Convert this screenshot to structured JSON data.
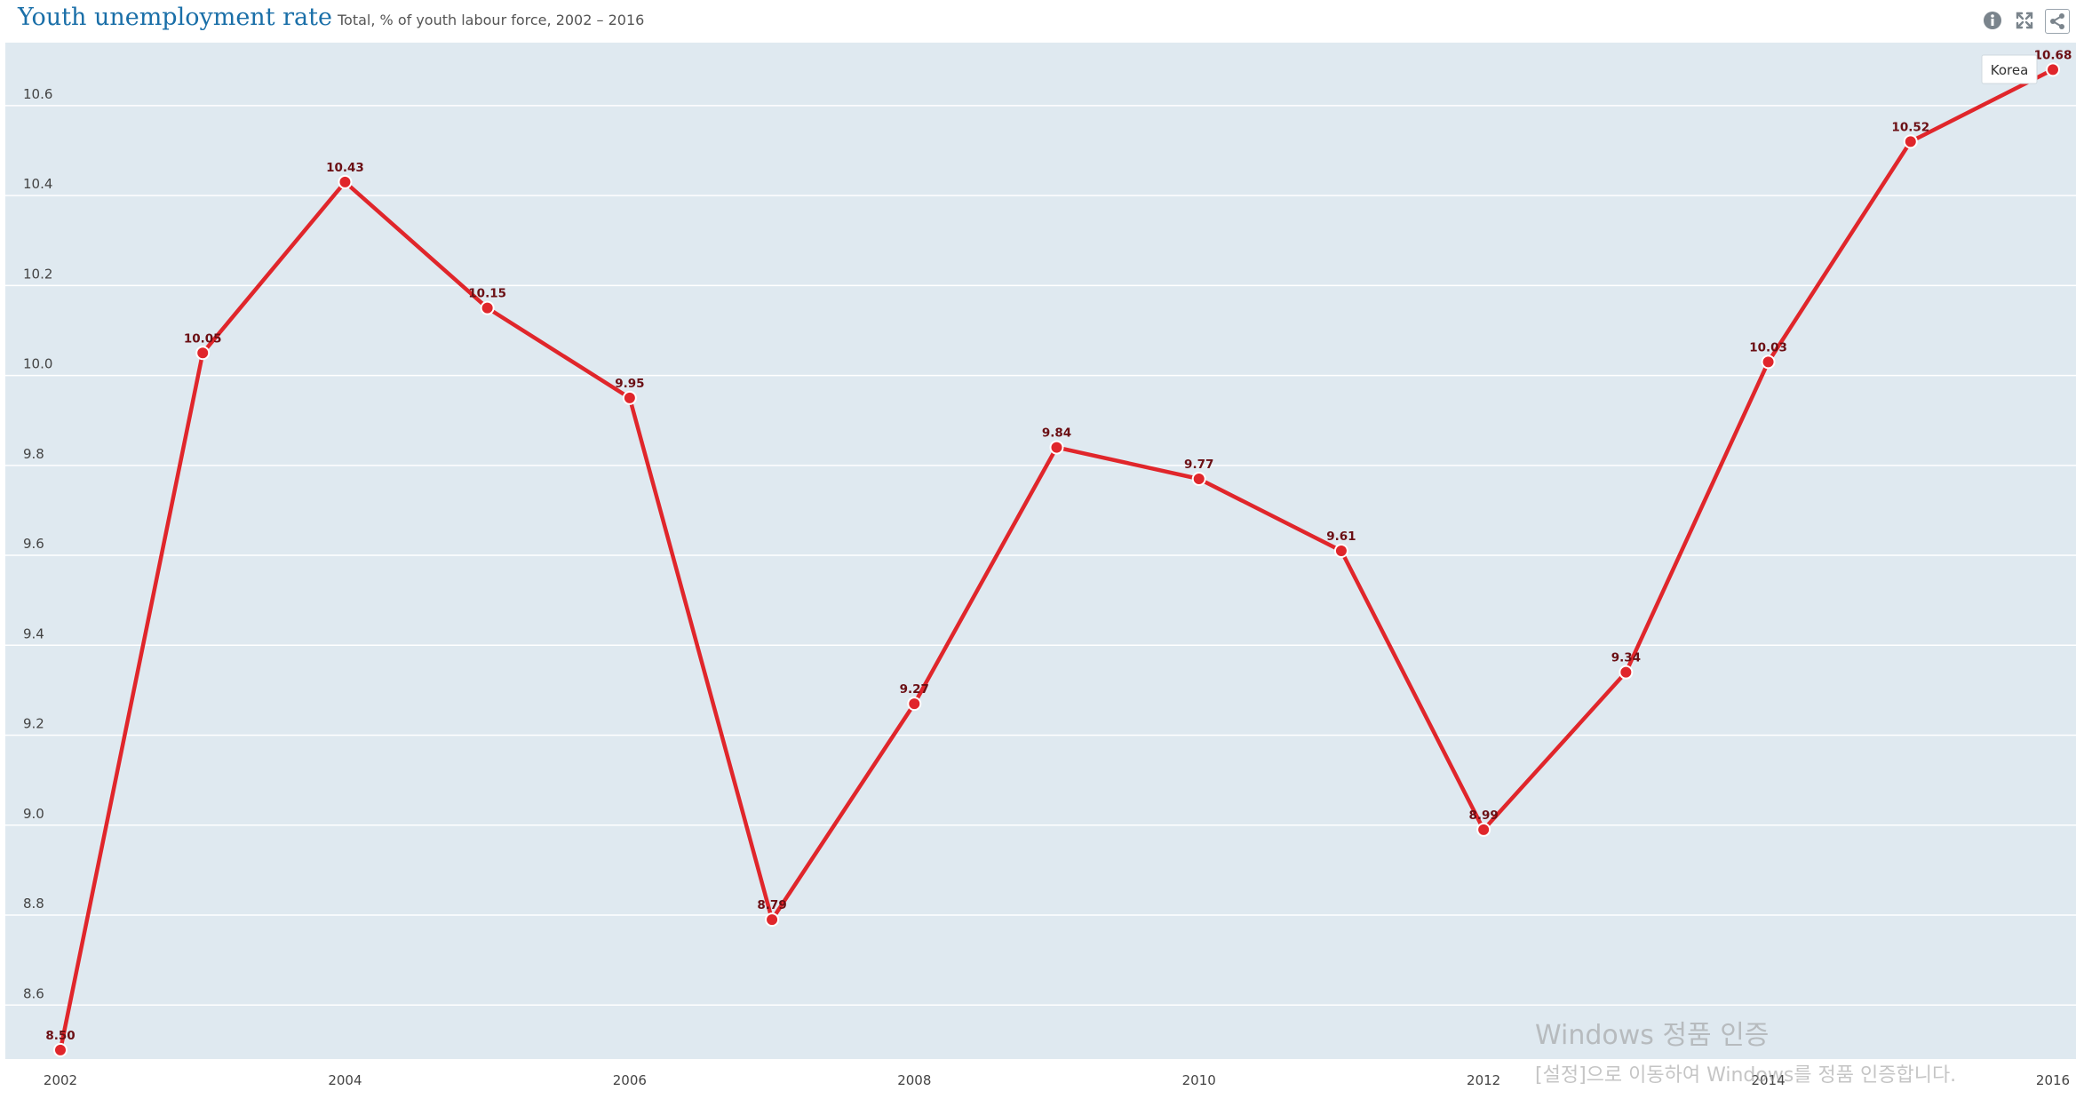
{
  "header": {
    "title": "Youth unemployment rate",
    "subtitle": "Total, % of youth labour force, 2002 – 2016",
    "icons": [
      "info-icon",
      "fullscreen-icon",
      "share-icon"
    ]
  },
  "chart_data": {
    "type": "line",
    "title": "Youth unemployment rate",
    "subtitle": "Total, % of youth labour force, 2002 – 2016",
    "xlabel": "",
    "ylabel": "",
    "x": [
      2002,
      2003,
      2004,
      2005,
      2006,
      2007,
      2008,
      2009,
      2010,
      2011,
      2012,
      2013,
      2014,
      2015,
      2016
    ],
    "x_tick_labels": [
      "2002",
      "2004",
      "2006",
      "2008",
      "2010",
      "2012",
      "2014",
      "2016"
    ],
    "y_tick_labels": [
      "8.6",
      "8.8",
      "9.0",
      "9.2",
      "9.4",
      "9.6",
      "9.8",
      "10.0",
      "10.2",
      "10.4",
      "10.6"
    ],
    "xlim": [
      2002,
      2016
    ],
    "ylim": [
      8.48,
      10.74
    ],
    "grid": true,
    "series": [
      {
        "name": "Korea",
        "color": "#e0262b",
        "values": [
          8.5,
          10.05,
          10.43,
          10.15,
          9.95,
          8.79,
          9.27,
          9.84,
          9.77,
          9.61,
          8.99,
          9.34,
          10.03,
          10.52,
          10.68
        ],
        "labels": [
          "8.50",
          "10.05",
          "10.43",
          "10.15",
          "9.95",
          "8.79",
          "9.27",
          "9.84",
          "9.77",
          "9.61",
          "8.99",
          "9.34",
          "10.03",
          "10.52",
          "10.68"
        ]
      }
    ],
    "legend": {
      "placement": "top-right",
      "label": "Korea"
    },
    "colors": {
      "plot_background": "#dfe9f0",
      "gridline": "#ffffff",
      "line": "#e0262b",
      "label": "#6b0f14"
    }
  },
  "watermark": {
    "line1": "Windows 정품 인증",
    "line2": "[설정]으로 이동하여 Windows를 정품 인증합니다."
  }
}
